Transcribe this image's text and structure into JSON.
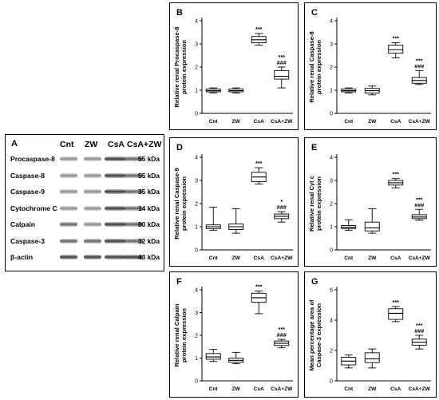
{
  "blot": {
    "letter": "A",
    "lanes": [
      "Cnt",
      "ZW",
      "CsA",
      "CsA+ZW"
    ],
    "rows": [
      {
        "protein": "Procaspase-8",
        "kda": "55 kDa",
        "intensity": [
          1,
          1,
          3,
          2
        ]
      },
      {
        "protein": "Caspase-8",
        "kda": "55 kDa",
        "intensity": [
          1,
          1,
          3,
          2
        ]
      },
      {
        "protein": "Caspase-9",
        "kda": "35 kDa",
        "intensity": [
          1,
          1,
          3,
          2
        ]
      },
      {
        "protein": "Cytochrome C",
        "kda": "14 kDa",
        "intensity": [
          1,
          1,
          3,
          2
        ]
      },
      {
        "protein": "Calpain",
        "kda": "80 kDa",
        "intensity": [
          2,
          1,
          3,
          2
        ]
      },
      {
        "protein": "Caspase-3",
        "kda": "32 kDa",
        "intensity": [
          2,
          2,
          3,
          2
        ]
      },
      {
        "protein": "β-actin",
        "kda": "43 kDa",
        "intensity": [
          3,
          3,
          3,
          3
        ]
      }
    ]
  },
  "chart_data": [
    {
      "id": "B",
      "type": "boxplot",
      "ylabel_lines": [
        "Relative renal Procaspase-8",
        "protein expression"
      ],
      "categories": [
        "Cnt",
        "ZW",
        "CsA",
        "CsA+ZW"
      ],
      "ylim": [
        0,
        4
      ],
      "yticks": [
        0,
        1,
        2,
        3,
        4
      ],
      "boxes": [
        {
          "min": 0.88,
          "q1": 0.93,
          "median": 0.98,
          "q3": 1.05,
          "max": 1.1
        },
        {
          "min": 0.88,
          "q1": 0.93,
          "median": 0.98,
          "q3": 1.05,
          "max": 1.1
        },
        {
          "min": 2.95,
          "q1": 3.05,
          "median": 3.18,
          "q3": 3.32,
          "max": 3.45
        },
        {
          "min": 1.1,
          "q1": 1.48,
          "median": 1.6,
          "q3": 1.85,
          "max": 2.0
        }
      ],
      "annotations": [
        {
          "cat": 2,
          "lines": [
            "***"
          ]
        },
        {
          "cat": 3,
          "lines": [
            "***",
            "###"
          ]
        }
      ]
    },
    {
      "id": "C",
      "type": "boxplot",
      "ylabel_lines": [
        "Relative renal Caspase-8",
        "protein expression"
      ],
      "categories": [
        "Cnt",
        "ZW",
        "CsA",
        "CsA+ZW"
      ],
      "ylim": [
        0,
        4
      ],
      "yticks": [
        0,
        1,
        2,
        3,
        4
      ],
      "boxes": [
        {
          "min": 0.88,
          "q1": 0.93,
          "median": 0.98,
          "q3": 1.05,
          "max": 1.1
        },
        {
          "min": 0.8,
          "q1": 0.88,
          "median": 0.98,
          "q3": 1.08,
          "max": 1.18
        },
        {
          "min": 2.4,
          "q1": 2.6,
          "median": 2.75,
          "q3": 2.95,
          "max": 3.05
        },
        {
          "min": 1.25,
          "q1": 1.3,
          "median": 1.42,
          "q3": 1.55,
          "max": 1.85
        }
      ],
      "annotations": [
        {
          "cat": 2,
          "lines": [
            "***"
          ]
        },
        {
          "cat": 3,
          "lines": [
            "***",
            "###"
          ]
        }
      ]
    },
    {
      "id": "D",
      "type": "boxplot",
      "ylabel_lines": [
        "Relative renal Caspase-9",
        "protein expression"
      ],
      "categories": [
        "Cnt",
        "ZW",
        "CsA",
        "CsA+ZW"
      ],
      "ylim": [
        0,
        4
      ],
      "yticks": [
        0,
        1,
        2,
        3,
        4
      ],
      "boxes": [
        {
          "min": 0.85,
          "q1": 0.92,
          "median": 1.0,
          "q3": 1.08,
          "max": 1.85
        },
        {
          "min": 0.72,
          "q1": 0.88,
          "median": 1.0,
          "q3": 1.12,
          "max": 1.78
        },
        {
          "min": 2.85,
          "q1": 2.95,
          "median": 3.15,
          "q3": 3.35,
          "max": 3.55
        },
        {
          "min": 1.2,
          "q1": 1.35,
          "median": 1.45,
          "q3": 1.55,
          "max": 1.65
        }
      ],
      "annotations": [
        {
          "cat": 2,
          "lines": [
            "***"
          ]
        },
        {
          "cat": 3,
          "lines": [
            "*",
            "###"
          ]
        }
      ]
    },
    {
      "id": "E",
      "type": "boxplot",
      "ylabel_lines": [
        "Relative renal Cyt c",
        "protein expression"
      ],
      "categories": [
        "Cnt",
        "ZW",
        "CsA",
        "CsA+ZW"
      ],
      "ylim": [
        0,
        4
      ],
      "yticks": [
        0,
        1,
        2,
        3,
        4
      ],
      "boxes": [
        {
          "min": 0.85,
          "q1": 0.92,
          "median": 0.98,
          "q3": 1.05,
          "max": 1.3
        },
        {
          "min": 0.72,
          "q1": 0.82,
          "median": 0.95,
          "q3": 1.2,
          "max": 1.78
        },
        {
          "min": 2.68,
          "q1": 2.8,
          "median": 2.9,
          "q3": 3.0,
          "max": 3.08
        },
        {
          "min": 1.28,
          "q1": 1.35,
          "median": 1.42,
          "q3": 1.52,
          "max": 1.75
        }
      ],
      "annotations": [
        {
          "cat": 2,
          "lines": [
            "***"
          ]
        },
        {
          "cat": 3,
          "lines": [
            "***",
            "###"
          ]
        }
      ]
    },
    {
      "id": "F",
      "type": "boxplot",
      "ylabel_lines": [
        "Relative renal Calpain",
        "protein expression"
      ],
      "categories": [
        "Cnt",
        "ZW",
        "CsA",
        "CsA+ZW"
      ],
      "ylim": [
        0,
        4
      ],
      "yticks": [
        0,
        1,
        2,
        3,
        4
      ],
      "boxes": [
        {
          "min": 0.85,
          "q1": 0.95,
          "median": 1.05,
          "q3": 1.2,
          "max": 1.38
        },
        {
          "min": 0.75,
          "q1": 0.82,
          "median": 0.9,
          "q3": 1.0,
          "max": 1.25
        },
        {
          "min": 2.95,
          "q1": 3.45,
          "median": 3.65,
          "q3": 3.85,
          "max": 3.95
        },
        {
          "min": 1.45,
          "q1": 1.55,
          "median": 1.65,
          "q3": 1.75,
          "max": 1.82
        }
      ],
      "annotations": [
        {
          "cat": 2,
          "lines": [
            "***"
          ]
        },
        {
          "cat": 3,
          "lines": [
            "***",
            "###"
          ]
        }
      ]
    },
    {
      "id": "G",
      "type": "boxplot",
      "ylabel_lines": [
        "Mean percentage area of",
        "Caspase-3 expression"
      ],
      "categories": [
        "Cnt",
        "ZW",
        "CsA",
        "CsA+ZW"
      ],
      "ylim": [
        0,
        6
      ],
      "yticks": [
        0,
        2,
        4,
        6
      ],
      "boxes": [
        {
          "min": 0.85,
          "q1": 1.05,
          "median": 1.3,
          "q3": 1.55,
          "max": 1.7
        },
        {
          "min": 0.85,
          "q1": 1.2,
          "median": 1.45,
          "q3": 1.85,
          "max": 2.1
        },
        {
          "min": 3.9,
          "q1": 4.05,
          "median": 4.45,
          "q3": 4.75,
          "max": 4.9
        },
        {
          "min": 2.1,
          "q1": 2.35,
          "median": 2.55,
          "q3": 2.75,
          "max": 3.0
        }
      ],
      "annotations": [
        {
          "cat": 2,
          "lines": [
            "***"
          ]
        },
        {
          "cat": 3,
          "lines": [
            "***",
            "###"
          ]
        }
      ]
    }
  ]
}
